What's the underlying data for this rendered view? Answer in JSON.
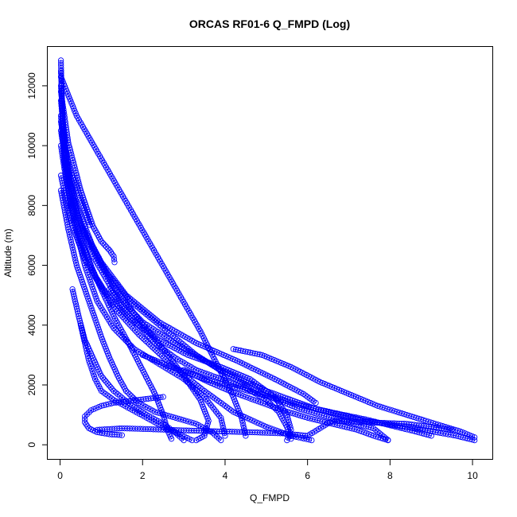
{
  "chart_data": {
    "type": "scatter",
    "title": "ORCAS RF01-6 Q_FMPD (Log)",
    "xlabel": "Q_FMPD",
    "ylabel": "Altitude (m)",
    "xlim": [
      -0.3,
      10.5
    ],
    "ylim": [
      -500,
      13300
    ],
    "xticks": [
      0,
      2,
      4,
      6,
      8,
      10
    ],
    "yticks": [
      0,
      2000,
      4000,
      6000,
      8000,
      10000,
      12000
    ],
    "grid": false,
    "legend": "none",
    "marker": "open-circle",
    "color": "#0000ff",
    "series": [
      {
        "values": [
          [
            0.02,
            12850
          ],
          [
            0.05,
            11000
          ],
          [
            0.12,
            9500
          ],
          [
            0.25,
            8200
          ],
          [
            0.5,
            6900
          ],
          [
            0.85,
            5600
          ],
          [
            1.3,
            4600
          ],
          [
            1.9,
            3700
          ],
          [
            2.6,
            2800
          ],
          [
            3.4,
            1900
          ],
          [
            4.2,
            1100
          ],
          [
            5.0,
            600
          ],
          [
            5.6,
            300
          ],
          [
            6.1,
            150
          ]
        ]
      },
      {
        "values": [
          [
            0.02,
            12500
          ],
          [
            0.08,
            10500
          ],
          [
            0.2,
            9000
          ],
          [
            0.45,
            7600
          ],
          [
            0.8,
            6300
          ],
          [
            1.3,
            5100
          ],
          [
            2.0,
            4100
          ],
          [
            2.9,
            3300
          ],
          [
            3.9,
            2500
          ],
          [
            5.0,
            1800
          ],
          [
            6.2,
            1200
          ],
          [
            7.4,
            800
          ],
          [
            8.6,
            550
          ],
          [
            9.6,
            300
          ],
          [
            10.05,
            150
          ]
        ]
      },
      {
        "values": [
          [
            0.02,
            12000
          ],
          [
            0.1,
            10000
          ],
          [
            0.3,
            8300
          ],
          [
            0.6,
            7000
          ],
          [
            1.1,
            5800
          ],
          [
            1.7,
            4800
          ],
          [
            2.5,
            3900
          ],
          [
            3.3,
            3000
          ],
          [
            4.1,
            2300
          ],
          [
            4.9,
            1700
          ],
          [
            5.8,
            1200
          ],
          [
            6.7,
            850
          ],
          [
            7.6,
            550
          ],
          [
            7.95,
            160
          ]
        ]
      },
      {
        "values": [
          [
            0.02,
            11500
          ],
          [
            0.15,
            9600
          ],
          [
            0.4,
            8000
          ],
          [
            0.8,
            6600
          ],
          [
            1.3,
            5300
          ],
          [
            1.9,
            4200
          ],
          [
            2.5,
            3200
          ],
          [
            3.0,
            2300
          ],
          [
            3.4,
            1500
          ],
          [
            3.6,
            800
          ],
          [
            3.5,
            300
          ],
          [
            3.3,
            150
          ]
        ]
      },
      {
        "values": [
          [
            0.02,
            11000
          ],
          [
            0.1,
            9500
          ],
          [
            0.25,
            8000
          ],
          [
            0.5,
            6800
          ],
          [
            0.9,
            5500
          ],
          [
            1.3,
            4300
          ],
          [
            1.7,
            3300
          ],
          [
            2.0,
            2500
          ],
          [
            2.3,
            1700
          ],
          [
            2.5,
            1000
          ],
          [
            2.6,
            500
          ],
          [
            2.7,
            200
          ]
        ]
      },
      {
        "values": [
          [
            0.02,
            10500
          ],
          [
            0.2,
            8800
          ],
          [
            0.5,
            7400
          ],
          [
            1.0,
            6100
          ],
          [
            1.6,
            5000
          ],
          [
            2.4,
            4100
          ],
          [
            3.3,
            3400
          ],
          [
            4.3,
            2800
          ],
          [
            5.2,
            2200
          ],
          [
            5.9,
            1700
          ],
          [
            6.2,
            1400
          ]
        ]
      },
      {
        "values": [
          [
            0.02,
            12300
          ],
          [
            0.4,
            11000
          ],
          [
            0.9,
            9800
          ],
          [
            1.4,
            8600
          ],
          [
            1.9,
            7400
          ],
          [
            2.4,
            6200
          ],
          [
            2.9,
            5000
          ],
          [
            3.4,
            3800
          ],
          [
            3.8,
            2700
          ],
          [
            4.2,
            1600
          ],
          [
            4.4,
            900
          ],
          [
            4.5,
            300
          ]
        ]
      },
      {
        "values": [
          [
            0.02,
            11800
          ],
          [
            0.2,
            10100
          ],
          [
            0.5,
            8500
          ],
          [
            0.8,
            7300
          ],
          [
            1.0,
            6800
          ],
          [
            1.2,
            6500
          ],
          [
            1.3,
            6300
          ],
          [
            1.32,
            6100
          ]
        ]
      },
      {
        "values": [
          [
            0.02,
            10800
          ],
          [
            0.2,
            9400
          ],
          [
            0.4,
            8600
          ],
          [
            0.55,
            8000
          ],
          [
            0.65,
            7600
          ],
          [
            0.72,
            7350
          ]
        ]
      },
      {
        "values": [
          [
            0.02,
            9000
          ],
          [
            0.25,
            7500
          ],
          [
            0.6,
            6200
          ],
          [
            1.1,
            5100
          ],
          [
            1.7,
            4200
          ],
          [
            2.4,
            3500
          ],
          [
            3.1,
            3000
          ],
          [
            3.9,
            2600
          ],
          [
            4.6,
            2200
          ],
          [
            5.2,
            1600
          ],
          [
            5.5,
            1000
          ],
          [
            5.6,
            500
          ],
          [
            5.5,
            150
          ]
        ]
      },
      {
        "values": [
          [
            0.02,
            8500
          ],
          [
            0.2,
            7200
          ],
          [
            0.4,
            6000
          ],
          [
            0.6,
            5200
          ],
          [
            0.8,
            4400
          ],
          [
            1.0,
            3600
          ],
          [
            1.2,
            2900
          ],
          [
            1.4,
            2300
          ],
          [
            1.6,
            1800
          ],
          [
            1.9,
            1400
          ],
          [
            2.3,
            1100
          ],
          [
            2.8,
            900
          ],
          [
            3.3,
            700
          ],
          [
            3.7,
            400
          ],
          [
            3.9,
            150
          ]
        ]
      },
      {
        "values": [
          [
            0.02,
            10000
          ],
          [
            0.15,
            8800
          ],
          [
            0.35,
            7400
          ],
          [
            0.6,
            6000
          ],
          [
            0.9,
            4800
          ],
          [
            1.3,
            3900
          ],
          [
            1.8,
            3200
          ],
          [
            2.4,
            2700
          ],
          [
            3.0,
            2200
          ],
          [
            3.5,
            1600
          ],
          [
            3.9,
            900
          ],
          [
            4.0,
            300
          ]
        ]
      },
      {
        "values": [
          [
            4.2,
            3200
          ],
          [
            4.9,
            3000
          ],
          [
            5.6,
            2600
          ],
          [
            6.3,
            2100
          ],
          [
            7.0,
            1700
          ],
          [
            7.7,
            1300
          ],
          [
            8.4,
            1000
          ],
          [
            9.1,
            700
          ],
          [
            9.7,
            450
          ],
          [
            10.05,
            250
          ]
        ]
      },
      {
        "values": [
          [
            1.2,
            5200
          ],
          [
            1.5,
            4600
          ],
          [
            1.9,
            4000
          ],
          [
            2.3,
            3400
          ],
          [
            2.8,
            2900
          ],
          [
            3.3,
            2500
          ],
          [
            3.9,
            2200
          ],
          [
            4.5,
            1900
          ],
          [
            5.0,
            1500
          ],
          [
            5.3,
            1100
          ],
          [
            5.5,
            600
          ],
          [
            5.6,
            200
          ]
        ]
      },
      {
        "values": [
          [
            0.5,
            4000
          ],
          [
            0.6,
            3400
          ],
          [
            0.7,
            2800
          ],
          [
            0.85,
            2200
          ],
          [
            1.0,
            1800
          ],
          [
            1.3,
            1500
          ],
          [
            1.7,
            1200
          ],
          [
            2.1,
            900
          ],
          [
            2.5,
            600
          ],
          [
            2.9,
            350
          ],
          [
            3.2,
            150
          ]
        ]
      },
      {
        "values": [
          [
            2.5,
            1600
          ],
          [
            2.2,
            1550
          ],
          [
            1.9,
            1500
          ],
          [
            1.6,
            1450
          ],
          [
            1.3,
            1400
          ],
          [
            1.0,
            1300
          ],
          [
            0.75,
            1150
          ],
          [
            0.6,
            950
          ],
          [
            0.6,
            750
          ],
          [
            0.7,
            550
          ],
          [
            0.9,
            420
          ],
          [
            1.2,
            350
          ],
          [
            1.5,
            320
          ]
        ]
      },
      {
        "values": [
          [
            0.9,
            500
          ],
          [
            1.5,
            550
          ],
          [
            2.2,
            520
          ],
          [
            3.0,
            480
          ],
          [
            3.8,
            450
          ],
          [
            4.6,
            420
          ],
          [
            5.4,
            380
          ],
          [
            6.0,
            300
          ],
          [
            6.6,
            800
          ],
          [
            7.5,
            750
          ],
          [
            8.4,
            700
          ],
          [
            9.0,
            600
          ],
          [
            9.5,
            500
          ]
        ]
      },
      {
        "values": [
          [
            0.3,
            5200
          ],
          [
            0.45,
            4300
          ],
          [
            0.6,
            3500
          ],
          [
            0.8,
            2900
          ],
          [
            1.0,
            2300
          ],
          [
            1.3,
            1800
          ],
          [
            1.7,
            1350
          ],
          [
            2.1,
            1000
          ],
          [
            2.5,
            700
          ],
          [
            2.8,
            400
          ],
          [
            3.0,
            150
          ]
        ]
      },
      {
        "values": [
          [
            2.0,
            3000
          ],
          [
            2.7,
            2600
          ],
          [
            3.5,
            2200
          ],
          [
            4.3,
            1900
          ],
          [
            5.1,
            1600
          ],
          [
            5.9,
            1300
          ],
          [
            6.7,
            1050
          ],
          [
            7.4,
            850
          ],
          [
            8.0,
            650
          ],
          [
            8.6,
            450
          ],
          [
            9.0,
            300
          ]
        ]
      },
      {
        "values": [
          [
            3.0,
            2500
          ],
          [
            3.6,
            2100
          ],
          [
            4.2,
            1750
          ],
          [
            4.8,
            1450
          ],
          [
            5.4,
            1150
          ],
          [
            6.0,
            900
          ],
          [
            6.6,
            700
          ],
          [
            7.2,
            500
          ],
          [
            7.6,
            300
          ],
          [
            7.95,
            150
          ]
        ]
      }
    ]
  }
}
